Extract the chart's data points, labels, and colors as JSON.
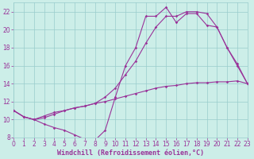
{
  "xlabel": "Windchill (Refroidissement éolien,°C)",
  "bg_color": "#cceee8",
  "grid_color": "#99cccc",
  "line_color": "#993399",
  "xlim": [
    0,
    23
  ],
  "ylim": [
    8,
    23
  ],
  "xticks": [
    0,
    1,
    2,
    3,
    4,
    5,
    6,
    7,
    8,
    9,
    10,
    11,
    12,
    13,
    14,
    15,
    16,
    17,
    18,
    19,
    20,
    21,
    22,
    23
  ],
  "yticks": [
    8,
    10,
    12,
    14,
    16,
    18,
    20,
    22
  ],
  "line1_x": [
    0,
    1,
    2,
    3,
    4,
    5,
    6,
    7,
    8,
    9,
    10,
    11,
    12,
    13,
    14,
    15,
    16,
    17,
    18,
    19,
    20,
    21,
    22,
    23
  ],
  "line1_y": [
    11.0,
    10.3,
    10.0,
    9.5,
    9.1,
    8.8,
    8.3,
    7.8,
    7.7,
    8.8,
    12.5,
    16.0,
    18.0,
    21.5,
    21.5,
    22.5,
    20.8,
    21.8,
    21.8,
    20.5,
    20.3,
    18.0,
    16.0,
    14.0
  ],
  "line2_x": [
    0,
    1,
    2,
    3,
    4,
    5,
    6,
    7,
    8,
    9,
    10,
    11,
    12,
    13,
    14,
    15,
    16,
    17,
    18,
    19,
    20,
    21,
    22,
    23
  ],
  "line2_y": [
    11.0,
    10.3,
    10.0,
    10.4,
    10.8,
    11.0,
    11.3,
    11.5,
    11.8,
    12.0,
    12.3,
    12.6,
    12.9,
    13.2,
    13.5,
    13.7,
    13.8,
    14.0,
    14.1,
    14.1,
    14.2,
    14.2,
    14.3,
    14.0
  ],
  "line3_x": [
    0,
    1,
    2,
    3,
    4,
    5,
    6,
    7,
    8,
    9,
    10,
    11,
    12,
    13,
    14,
    15,
    16,
    17,
    18,
    19,
    20,
    21,
    22,
    23
  ],
  "line3_y": [
    11.0,
    10.3,
    10.0,
    10.2,
    10.6,
    11.0,
    11.3,
    11.5,
    11.8,
    12.5,
    13.5,
    15.0,
    16.5,
    18.5,
    20.3,
    21.5,
    21.5,
    22.0,
    22.0,
    21.8,
    20.3,
    18.0,
    16.2,
    14.0
  ],
  "marker_size": 1.8,
  "line_width": 0.8,
  "tick_fontsize": 5.5,
  "xlabel_fontsize": 6.0
}
